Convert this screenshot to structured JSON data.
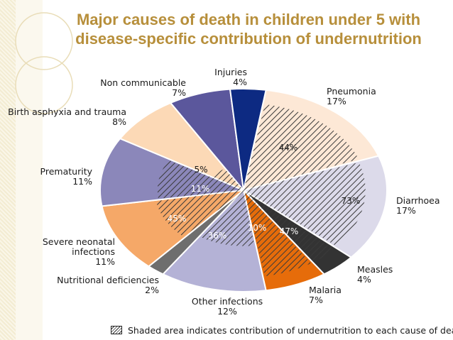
{
  "title": {
    "line1": "Major causes of death in children under 5 with",
    "line2": "disease-specific contribution of undernutrition"
  },
  "legend": {
    "text": "Shaded area indicates contribution of undernutrition to each cause of death."
  },
  "chart_data": {
    "type": "pie",
    "title": "Major causes of death in children under 5 with disease-specific contribution of undernutrition",
    "slices": [
      {
        "name": "Pneumonia",
        "value": 17,
        "label": "17%",
        "undernutrition": "44%",
        "color": "#fde8d6"
      },
      {
        "name": "Diarrhoea",
        "value": 17,
        "label": "17%",
        "undernutrition": "73%",
        "color": "#dcdaea"
      },
      {
        "name": "Measles",
        "value": 4,
        "label": "4%",
        "undernutrition": "47%",
        "color": "#333333"
      },
      {
        "name": "Malaria",
        "value": 7,
        "label": "7%",
        "undernutrition": "10%",
        "color": "#e66c0a"
      },
      {
        "name": "Other infections",
        "value": 12,
        "label": "12%",
        "undernutrition": "36%",
        "color": "#b4b2d6"
      },
      {
        "name": "Nutritional deficiencies",
        "value": 2,
        "label": "2%",
        "undernutrition": "",
        "color": "#6e6e6e"
      },
      {
        "name": "Severe neonatal infections",
        "value": 11,
        "label": "11%",
        "undernutrition": "45%",
        "color": "#f5a868"
      },
      {
        "name": "Prematurity",
        "value": 11,
        "label": "11%",
        "undernutrition": "11%",
        "color": "#8b87ba"
      },
      {
        "name": "Birth asphyxia and trauma",
        "value": 8,
        "label": "8%",
        "undernutrition": "5%",
        "color": "#fcd9b6"
      },
      {
        "name": "Non communicable",
        "value": 7,
        "label": "7%",
        "undernutrition": "",
        "color": "#5b579c"
      },
      {
        "name": "Injuries",
        "value": 4,
        "label": "4%",
        "undernutrition": "",
        "color": "#0d2a82"
      }
    ]
  },
  "colors": {
    "title": "#b78f3b",
    "background": "#ffffff"
  }
}
